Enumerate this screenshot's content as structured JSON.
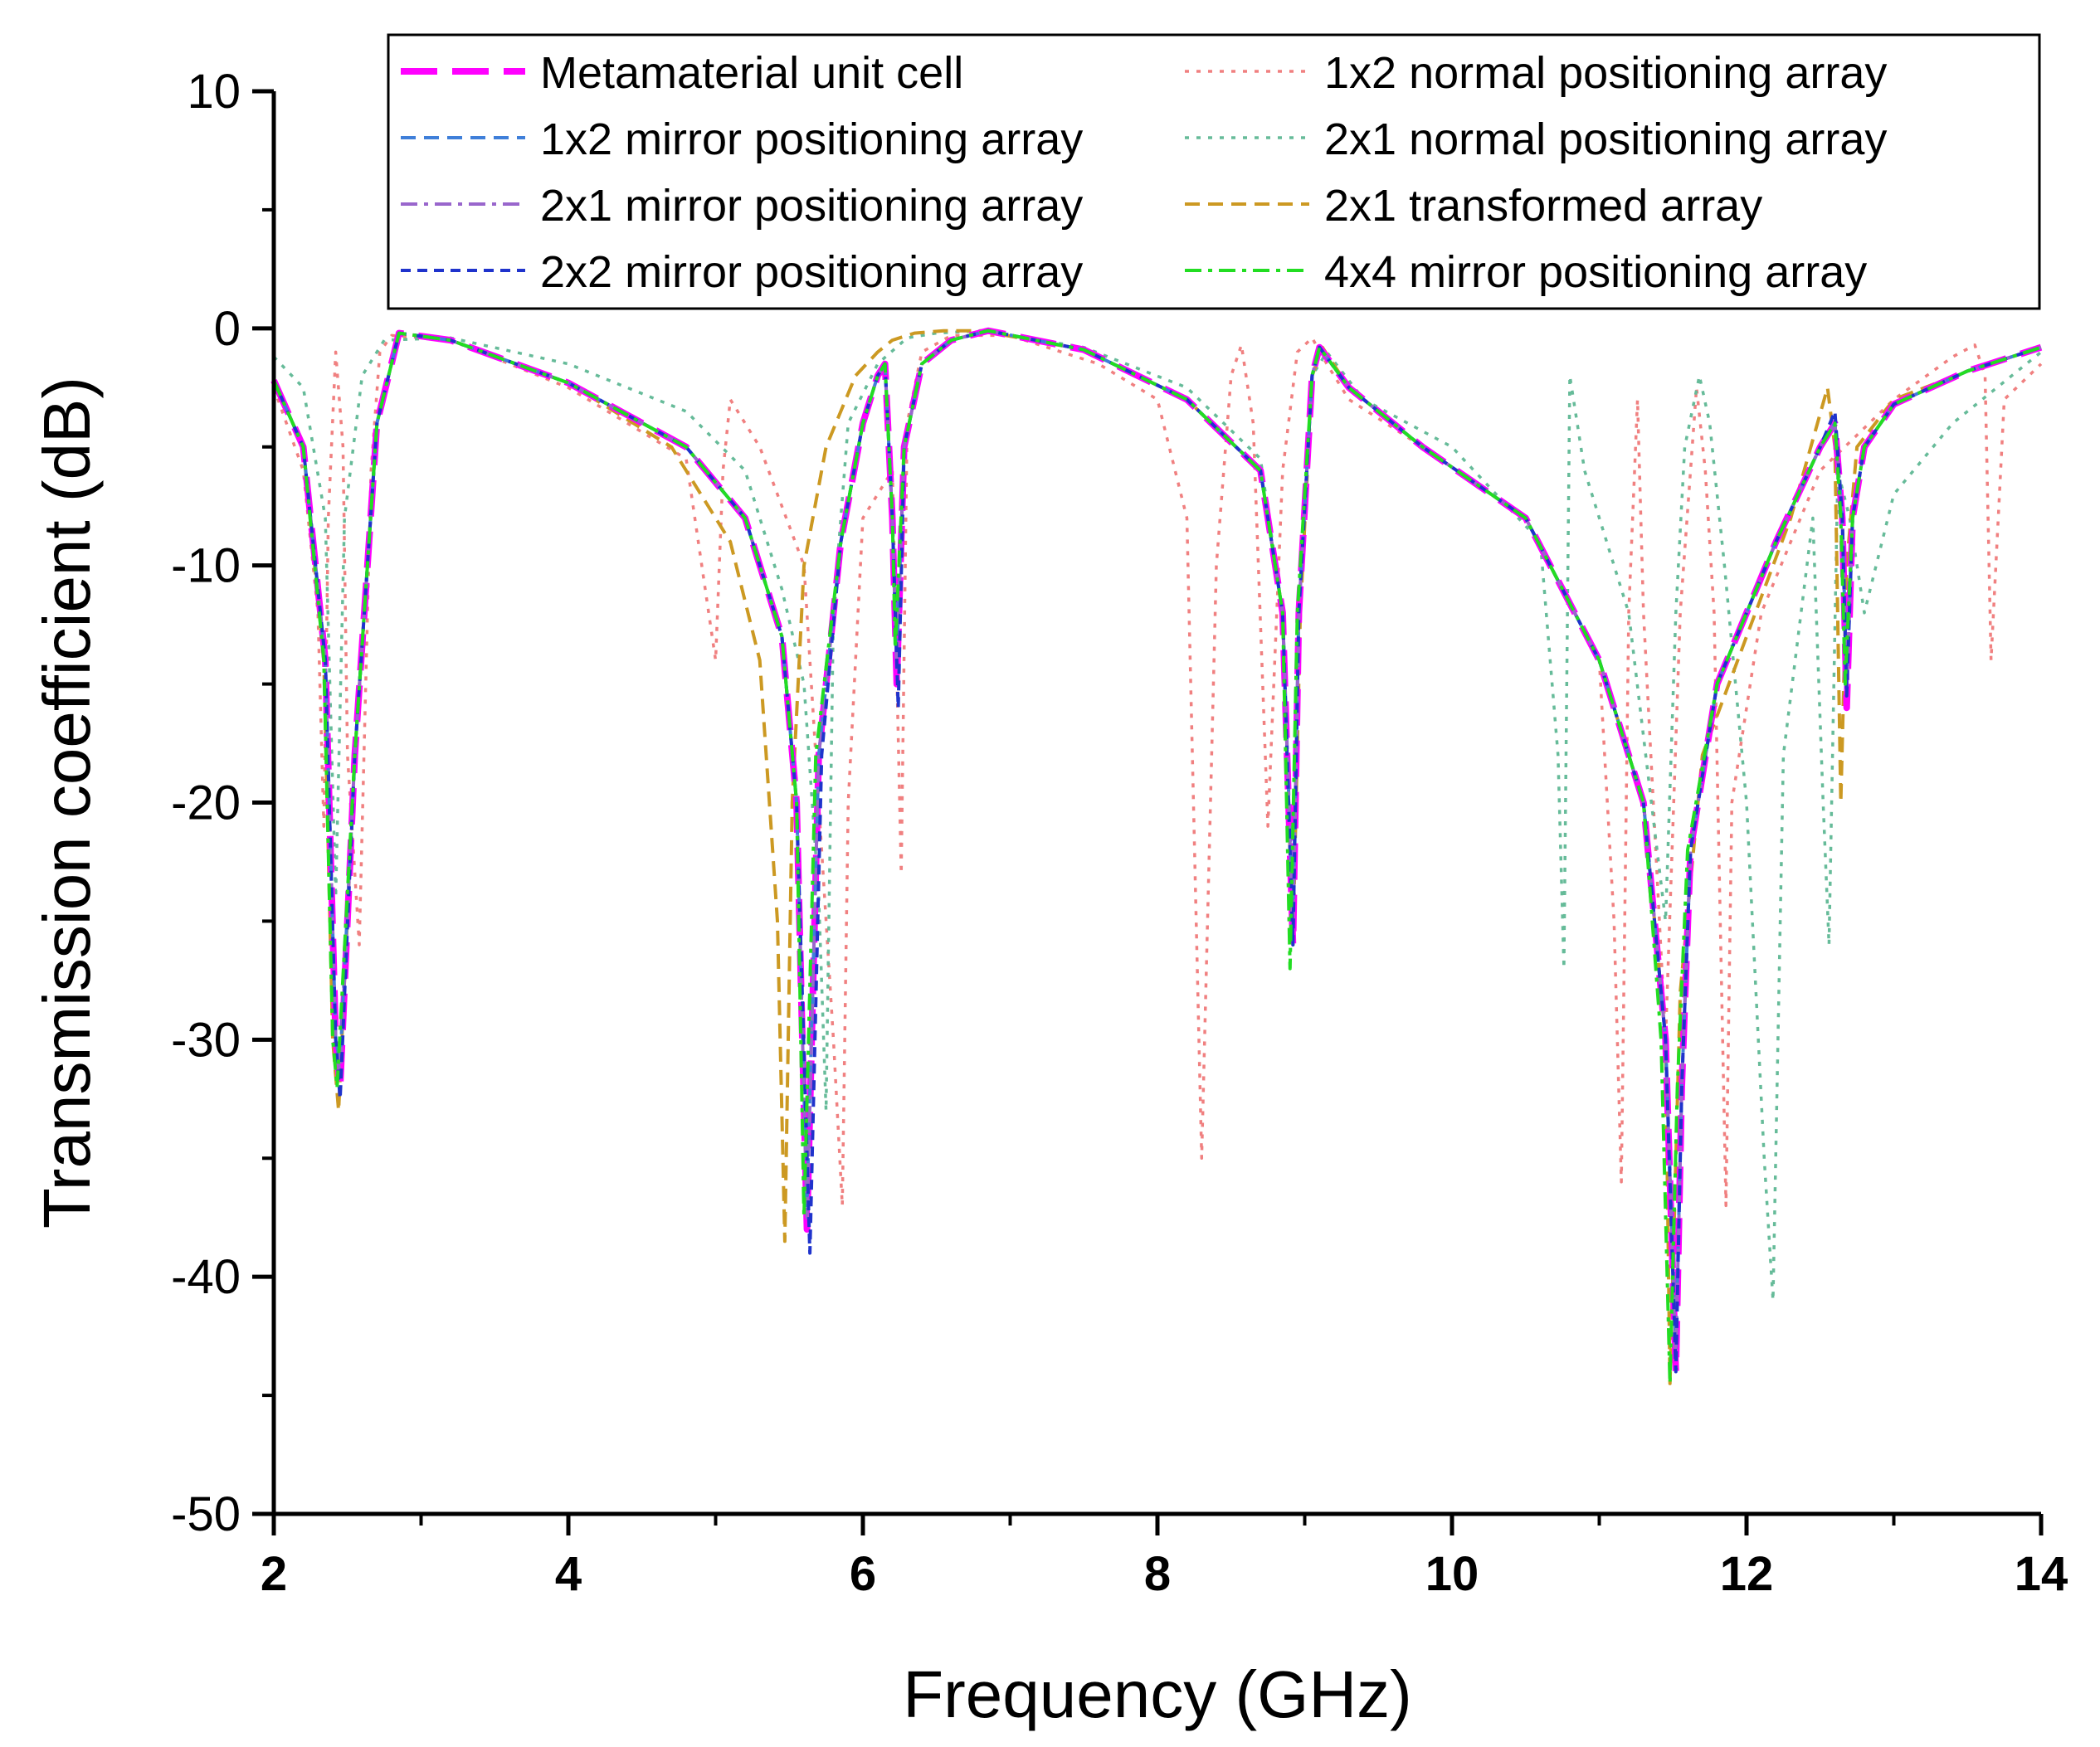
{
  "chart_data": {
    "type": "line",
    "title": "",
    "xlabel": "Frequency (GHz)",
    "ylabel": "Transmission coefficient (dB)",
    "xlim": [
      2,
      14
    ],
    "ylim": [
      -50,
      10
    ],
    "xticks": [
      2,
      4,
      6,
      8,
      10,
      12,
      14
    ],
    "yticks": [
      10,
      0,
      -10,
      -20,
      -30,
      -40,
      -50
    ],
    "xtick_labels": [
      "2",
      "4",
      "6",
      "8",
      "10",
      "12",
      "14"
    ],
    "ytick_labels": [
      "10",
      "0",
      "-10",
      "-20",
      "-30",
      "-40",
      "-50"
    ],
    "legend_position": "top-right",
    "series": [
      {
        "name": "Metamaterial unit cell",
        "color": "#FF00FF",
        "dash": "long-dash",
        "x": [
          2.0,
          2.2,
          2.35,
          2.42,
          2.45,
          2.55,
          2.7,
          2.85,
          3.2,
          4.0,
          4.8,
          5.2,
          5.45,
          5.55,
          5.62,
          5.7,
          5.85,
          6.0,
          6.1,
          6.15,
          6.2,
          6.23,
          6.28,
          6.4,
          6.6,
          6.85,
          7.5,
          8.2,
          8.7,
          8.85,
          8.92,
          8.96,
          9.05,
          9.1,
          9.3,
          9.8,
          10.5,
          11.0,
          11.3,
          11.45,
          11.52,
          11.56,
          11.62,
          11.8,
          12.2,
          12.5,
          12.6,
          12.65,
          12.68,
          12.72,
          12.8,
          13.0,
          13.5,
          14.0
        ],
        "y": [
          -2.2,
          -5,
          -14,
          -30,
          -32,
          -18,
          -4,
          -0.2,
          -0.5,
          -2.3,
          -5,
          -8,
          -13,
          -20,
          -38,
          -18,
          -9,
          -4,
          -2,
          -1.5,
          -8,
          -15,
          -5,
          -1.5,
          -0.5,
          -0.1,
          -0.9,
          -3,
          -6,
          -12,
          -26,
          -12,
          -2,
          -0.8,
          -2.5,
          -5,
          -8,
          -14,
          -20,
          -30,
          -44,
          -32,
          -22,
          -15,
          -9,
          -5,
          -4,
          -8,
          -16,
          -8,
          -5,
          -3.2,
          -1.8,
          -0.8
        ]
      },
      {
        "name": "1x2 normal positioning array",
        "color": "#F08080",
        "dash": "dot",
        "x": [
          2.0,
          2.2,
          2.3,
          2.34,
          2.37,
          2.42,
          2.47,
          2.5,
          2.58,
          2.66,
          2.72,
          2.8,
          3.2,
          4.0,
          4.8,
          5.0,
          5.05,
          5.1,
          5.3,
          5.6,
          5.8,
          5.86,
          5.9,
          6.0,
          6.2,
          6.26,
          6.3,
          6.4,
          6.6,
          7.0,
          7.6,
          8.0,
          8.2,
          8.3,
          8.4,
          8.5,
          8.57,
          8.65,
          8.75,
          8.85,
          8.95,
          9.05,
          9.15,
          9.3,
          9.8,
          10.5,
          11.0,
          11.1,
          11.15,
          11.2,
          11.26,
          11.3,
          11.45,
          11.55,
          11.66,
          11.72,
          11.78,
          11.86,
          11.9,
          12.1,
          12.5,
          13.0,
          13.4,
          13.55,
          13.62,
          13.66,
          13.75,
          14.0
        ],
        "y": [
          -2.5,
          -6,
          -12,
          -21,
          -8,
          -1,
          -5,
          -18,
          -26,
          -6,
          -1,
          -0.3,
          -0.5,
          -2.5,
          -5.5,
          -14,
          -6,
          -3,
          -5,
          -10,
          -30,
          -37,
          -20,
          -8,
          -6,
          -23,
          -4,
          -1,
          -0.3,
          -0.3,
          -1.5,
          -3,
          -8,
          -35,
          -10,
          -2,
          -0.7,
          -4,
          -21,
          -6,
          -1,
          -0.4,
          -1.5,
          -3,
          -5,
          -8,
          -14,
          -25,
          -36,
          -12,
          -3,
          -12,
          -30,
          -12,
          -2.5,
          -6,
          -12,
          -37,
          -20,
          -12,
          -6,
          -3,
          -1.2,
          -0.7,
          -2,
          -14,
          -3,
          -1.5
        ]
      },
      {
        "name": "1x2 mirror positioning array",
        "color": "#3F7FD9",
        "dash": "dash",
        "x": [
          2.0,
          2.2,
          2.35,
          2.42,
          2.45,
          2.55,
          2.7,
          2.85,
          3.2,
          4.0,
          4.8,
          5.2,
          5.45,
          5.55,
          5.62,
          5.7,
          5.85,
          6.0,
          6.1,
          6.15,
          6.2,
          6.23,
          6.28,
          6.4,
          6.6,
          6.85,
          7.5,
          8.2,
          8.7,
          8.85,
          8.92,
          8.96,
          9.05,
          9.1,
          9.3,
          9.8,
          10.5,
          11.0,
          11.3,
          11.45,
          11.52,
          11.56,
          11.62,
          11.8,
          12.2,
          12.5,
          12.6,
          12.65,
          12.68,
          12.72,
          12.8,
          13.0,
          13.5,
          14.0
        ],
        "y": [
          -2.2,
          -5,
          -14,
          -30,
          -31,
          -18,
          -4,
          -0.2,
          -0.5,
          -2.3,
          -5,
          -8,
          -13,
          -20,
          -37,
          -18,
          -9,
          -4,
          -2,
          -1.5,
          -8,
          -14,
          -5,
          -1.5,
          -0.5,
          -0.1,
          -0.9,
          -3,
          -6,
          -12,
          -25,
          -12,
          -2,
          -0.8,
          -2.5,
          -5,
          -8,
          -14,
          -20,
          -30,
          -43,
          -32,
          -22,
          -15,
          -9,
          -5,
          -4,
          -8,
          -15,
          -8,
          -5,
          -3.2,
          -1.8,
          -0.8
        ]
      },
      {
        "name": "2x1 normal positioning array",
        "color": "#66BB99",
        "dash": "dot",
        "x": [
          2.0,
          2.2,
          2.35,
          2.42,
          2.48,
          2.6,
          2.75,
          3.2,
          4.0,
          4.8,
          5.2,
          5.45,
          5.6,
          5.7,
          5.75,
          5.8,
          5.9,
          6.1,
          6.3,
          6.5,
          6.8,
          7.5,
          8.2,
          8.7,
          8.85,
          8.92,
          8.96,
          9.05,
          9.15,
          9.4,
          10.0,
          10.6,
          10.72,
          10.76,
          10.8,
          10.9,
          11.2,
          11.45,
          11.52,
          11.58,
          11.68,
          11.75,
          11.85,
          12.0,
          12.12,
          12.18,
          12.25,
          12.45,
          12.52,
          12.56,
          12.62,
          12.7,
          12.8,
          13.0,
          13.4,
          14.0
        ],
        "y": [
          -1.2,
          -2.5,
          -8,
          -24,
          -8,
          -2,
          -0.5,
          -0.4,
          -1.5,
          -3.5,
          -6,
          -11,
          -15,
          -24,
          -33,
          -12,
          -4,
          -1.5,
          -0.4,
          -0.2,
          -0.1,
          -0.8,
          -2.5,
          -5.5,
          -12,
          -25,
          -12,
          -2,
          -1,
          -3,
          -5,
          -9,
          -18,
          -27,
          -2,
          -6,
          -12,
          -25,
          -12,
          -5,
          -2,
          -4,
          -10,
          -20,
          -35,
          -41,
          -18,
          -8,
          -20,
          -26,
          -6,
          -8,
          -12,
          -7,
          -4,
          -1
        ]
      },
      {
        "name": "2x1 mirror positioning array",
        "color": "#9966CC",
        "dash": "dash-dot",
        "x": [
          2.0,
          2.2,
          2.35,
          2.42,
          2.45,
          2.55,
          2.7,
          2.85,
          3.2,
          4.0,
          4.8,
          5.2,
          5.45,
          5.55,
          5.62,
          5.7,
          5.85,
          6.0,
          6.1,
          6.15,
          6.2,
          6.23,
          6.28,
          6.4,
          6.6,
          6.85,
          7.5,
          8.2,
          8.7,
          8.85,
          8.92,
          8.96,
          9.05,
          9.1,
          9.3,
          9.8,
          10.5,
          11.0,
          11.3,
          11.45,
          11.52,
          11.56,
          11.62,
          11.8,
          12.2,
          12.5,
          12.6,
          12.65,
          12.68,
          12.72,
          12.8,
          13.0,
          13.5,
          14.0
        ],
        "y": [
          -2.2,
          -5,
          -14,
          -30,
          -31.5,
          -18,
          -4,
          -0.2,
          -0.5,
          -2.3,
          -5,
          -8,
          -13,
          -20,
          -37.5,
          -18,
          -9,
          -4,
          -2,
          -1.5,
          -8,
          -14.5,
          -5,
          -1.5,
          -0.5,
          -0.1,
          -0.9,
          -3,
          -6,
          -12,
          -25.5,
          -12,
          -2,
          -0.8,
          -2.5,
          -5,
          -8,
          -14,
          -20,
          -30,
          -43.5,
          -32,
          -22,
          -15,
          -9,
          -5,
          -4,
          -8,
          -15.5,
          -8,
          -5,
          -3.2,
          -1.8,
          -0.8
        ]
      },
      {
        "name": "2x1 transformed array",
        "color": "#CC9922",
        "dash": "dash",
        "x": [
          2.0,
          2.2,
          2.34,
          2.4,
          2.44,
          2.55,
          2.7,
          2.85,
          3.2,
          4.0,
          4.7,
          5.1,
          5.3,
          5.42,
          5.47,
          5.52,
          5.6,
          5.75,
          5.95,
          6.1,
          6.2,
          6.35,
          6.55,
          6.8,
          7.5,
          8.2,
          8.7,
          8.85,
          8.92,
          8.97,
          9.05,
          9.12,
          9.3,
          9.8,
          10.5,
          11.0,
          11.3,
          11.45,
          11.48,
          11.55,
          11.7,
          12.0,
          12.3,
          12.55,
          12.6,
          12.64,
          12.68,
          12.75,
          13.0,
          13.5,
          14.0
        ],
        "y": [
          -2.2,
          -5,
          -14,
          -30,
          -33,
          -18,
          -4,
          -0.2,
          -0.5,
          -2.3,
          -5,
          -9,
          -14,
          -25,
          -38.5,
          -20,
          -10,
          -5,
          -2,
          -1,
          -0.5,
          -0.2,
          -0.1,
          -0.1,
          -0.9,
          -3,
          -6,
          -12,
          -26,
          -12,
          -2,
          -0.8,
          -2.5,
          -5,
          -8,
          -14,
          -20,
          -30,
          -44.5,
          -28,
          -18,
          -13,
          -8,
          -2.5,
          -5,
          -20,
          -10,
          -5,
          -3,
          -1.8,
          -0.8
        ]
      },
      {
        "name": "2x2 mirror positioning array",
        "color": "#1F33CC",
        "dash": "short-dash",
        "x": [
          2.0,
          2.2,
          2.35,
          2.42,
          2.45,
          2.55,
          2.7,
          2.85,
          3.2,
          4.0,
          4.8,
          5.2,
          5.45,
          5.55,
          5.64,
          5.72,
          5.85,
          6.0,
          6.1,
          6.15,
          6.2,
          6.24,
          6.28,
          6.4,
          6.6,
          6.85,
          7.5,
          8.2,
          8.7,
          8.85,
          8.92,
          8.96,
          9.05,
          9.1,
          9.3,
          9.8,
          10.5,
          11.0,
          11.3,
          11.45,
          11.52,
          11.56,
          11.62,
          11.8,
          12.2,
          12.5,
          12.6,
          12.65,
          12.68,
          12.72,
          12.8,
          13.0,
          13.5,
          14.0
        ],
        "y": [
          -2.2,
          -5,
          -14,
          -30,
          -32.5,
          -18,
          -4,
          -0.2,
          -0.5,
          -2.3,
          -5,
          -8,
          -13,
          -20,
          -39,
          -18,
          -9,
          -4,
          -2,
          -1.5,
          -8,
          -16,
          -5,
          -1.5,
          -0.5,
          -0.1,
          -0.9,
          -3,
          -6,
          -12,
          -26,
          -12,
          -2,
          -0.8,
          -2.5,
          -5,
          -8,
          -14,
          -20,
          -30,
          -44,
          -32,
          -22,
          -15,
          -9,
          -5,
          -3.5,
          -8,
          -15.5,
          -8,
          -5,
          -3.2,
          -1.8,
          -0.8
        ]
      },
      {
        "name": "4x4 mirror positioning array",
        "color": "#22DD22",
        "dash": "dash-dot",
        "x": [
          2.0,
          2.2,
          2.34,
          2.4,
          2.43,
          2.55,
          2.7,
          2.85,
          3.2,
          4.0,
          4.8,
          5.2,
          5.45,
          5.55,
          5.6,
          5.68,
          5.85,
          6.0,
          6.1,
          6.15,
          6.2,
          6.22,
          6.28,
          6.4,
          6.6,
          6.85,
          7.5,
          8.2,
          8.7,
          8.85,
          8.9,
          8.95,
          9.05,
          9.1,
          9.3,
          9.8,
          10.5,
          11.0,
          11.3,
          11.42,
          11.48,
          11.53,
          11.6,
          11.8,
          12.2,
          12.5,
          12.6,
          12.64,
          12.67,
          12.72,
          12.8,
          13.0,
          13.5,
          14.0
        ],
        "y": [
          -2.2,
          -5,
          -14,
          -30,
          -32,
          -18,
          -4,
          -0.2,
          -0.5,
          -2.3,
          -5,
          -8,
          -13,
          -20,
          -37.5,
          -18,
          -9,
          -4,
          -2,
          -1.5,
          -8,
          -13.5,
          -5,
          -1.5,
          -0.5,
          -0.1,
          -0.9,
          -3,
          -6,
          -12,
          -27,
          -12,
          -2,
          -0.8,
          -2.5,
          -5,
          -8,
          -14,
          -20,
          -30,
          -44.5,
          -32,
          -22,
          -15,
          -9,
          -5,
          -4,
          -8,
          -15,
          -8,
          -5,
          -3.2,
          -1.8,
          -0.8
        ]
      }
    ]
  }
}
